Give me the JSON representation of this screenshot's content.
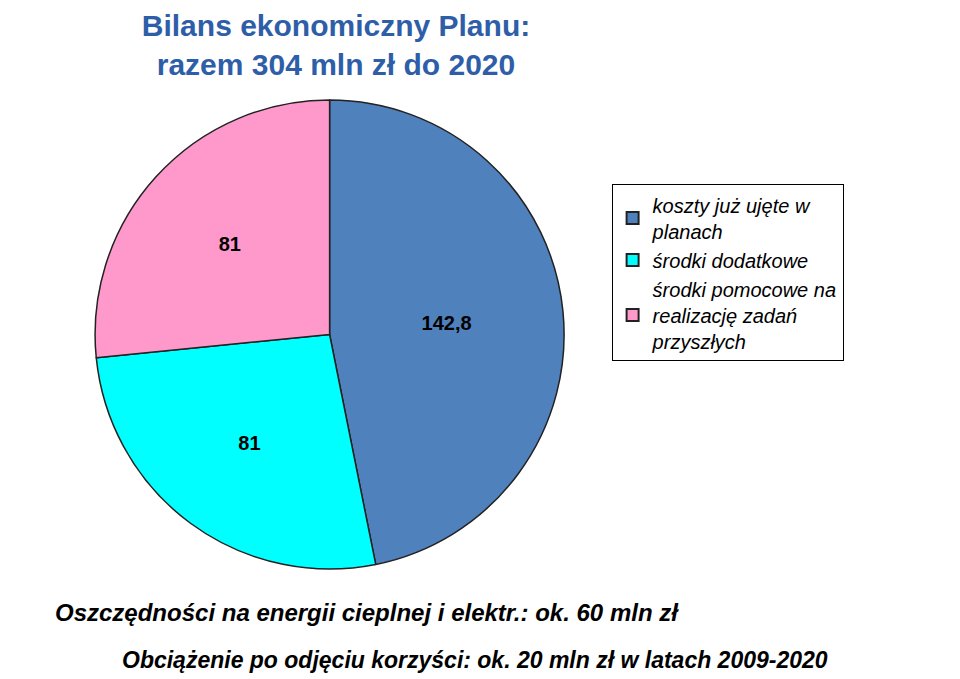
{
  "chart_data": {
    "type": "pie",
    "title": "Bilans ekonomiczny Planu:",
    "subtitle": "razem 304 mln zł do 2020",
    "categories": [
      "koszty już ujęte w planach",
      "środki dodatkowe",
      "środki pomocowe na realizację zadań przyszłych"
    ],
    "values": [
      142.8,
      81,
      81
    ],
    "value_labels": [
      "142,8",
      "81",
      "81"
    ],
    "colors": [
      "#4f81bd",
      "#00ffff",
      "#ff99cc"
    ],
    "data_labels": true,
    "legend": "right",
    "annotations": [
      "Oszczędności na energii cieplnej i elektr.: ok. 60 mln zł",
      "Obciążenie po odjęciu korzyści: ok. 20 mln zł w latach 2009-2020"
    ]
  }
}
